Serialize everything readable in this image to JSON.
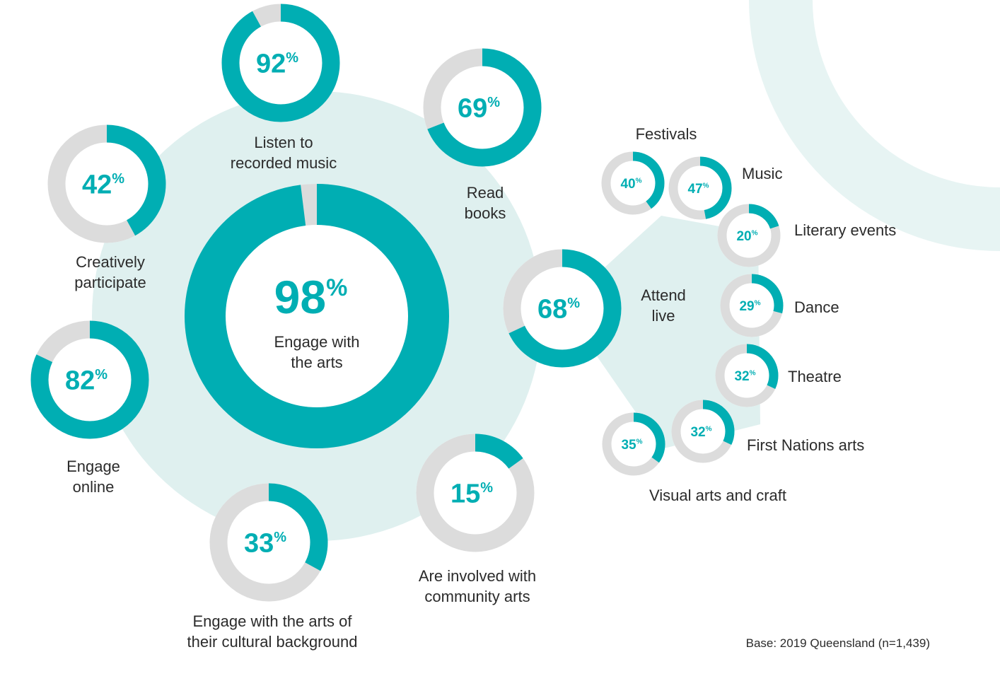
{
  "colors": {
    "filled": "#00aeb3",
    "track": "#dcdcdc",
    "bubble": "#dff0ef",
    "decor": "#e7f4f3",
    "text": "#2b2b2b"
  },
  "chart_data": {
    "type": "donut",
    "title": "",
    "unit": "%",
    "series": [
      {
        "name": "Engage with the arts",
        "value": 98
      },
      {
        "name": "Listen to recorded music",
        "value": 92
      },
      {
        "name": "Read books",
        "value": 69
      },
      {
        "name": "Creatively participate",
        "value": 42
      },
      {
        "name": "Engage online",
        "value": 82
      },
      {
        "name": "Engage with the arts of their cultural background",
        "value": 33
      },
      {
        "name": "Are involved with community arts",
        "value": 15
      },
      {
        "name": "Attend live",
        "value": 68
      },
      {
        "name": "Festivals",
        "value": 40
      },
      {
        "name": "Music",
        "value": 47
      },
      {
        "name": "Literary events",
        "value": 20
      },
      {
        "name": "Dance",
        "value": 29
      },
      {
        "name": "Theatre",
        "value": 32
      },
      {
        "name": "First Nations arts",
        "value": 32
      },
      {
        "name": "Visual arts and craft",
        "value": 35
      }
    ],
    "labels": {
      "main": [
        "Engage with",
        "the arts"
      ],
      "music": [
        "Listen to",
        "recorded music"
      ],
      "books": [
        "Read",
        "books"
      ],
      "creative": [
        "Creatively",
        "participate"
      ],
      "online": [
        "Engage",
        "online"
      ],
      "cultural": [
        "Engage with the arts of",
        "their cultural background"
      ],
      "community": [
        "Are involved with",
        "community arts"
      ],
      "live": [
        "Attend",
        "live"
      ],
      "festivals": [
        "Festivals"
      ],
      "livemusic": [
        "Music"
      ],
      "literary": [
        "Literary events"
      ],
      "dance": [
        "Dance"
      ],
      "theatre": [
        "Theatre"
      ],
      "firstnations": [
        "First Nations arts"
      ],
      "visual": [
        "Visual arts and craft"
      ]
    },
    "base_note": "Base: 2019 Queensland (n=1,439)"
  }
}
